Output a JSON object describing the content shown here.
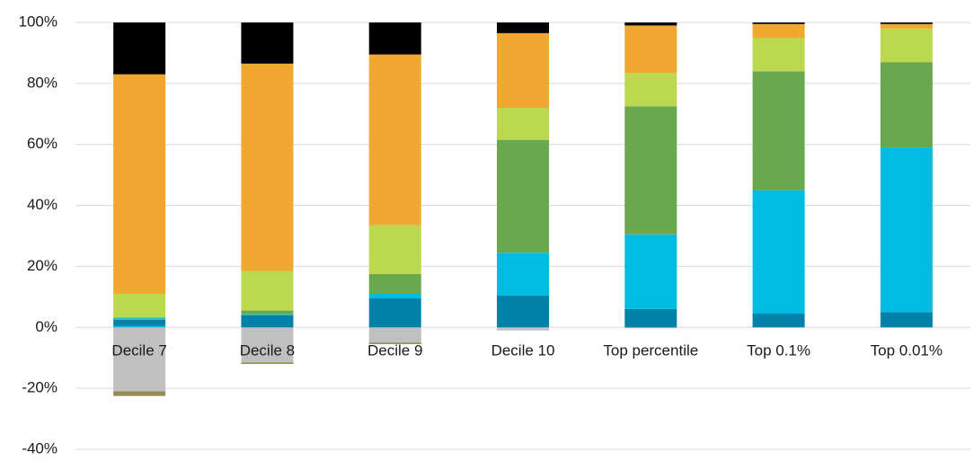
{
  "chart_data": {
    "type": "bar",
    "stacked": true,
    "title": "",
    "xlabel": "",
    "ylabel": "",
    "ylim": [
      -40,
      100
    ],
    "yticks": [
      100,
      80,
      60,
      40,
      20,
      0,
      -20,
      -40
    ],
    "ytick_labels": [
      "100%",
      "80%",
      "60%",
      "40%",
      "20%",
      "0%",
      "-20%",
      "-40%"
    ],
    "grid": true,
    "legend": "none",
    "categories": [
      "Decile 7",
      "Decile 8",
      "Decile 9",
      "Decile 10",
      "Top percentile",
      "Top 0.1%",
      "Top 0.01%"
    ],
    "series": [
      {
        "color": "#c0c0c0",
        "values": [
          -21.0,
          -11.5,
          -5.0,
          -1.0,
          -0.3,
          0,
          0
        ]
      },
      {
        "color": "#948a54",
        "values": [
          -1.5,
          -0.5,
          -0.5,
          0,
          0,
          0,
          0
        ]
      },
      {
        "color": "#00b0f0",
        "values": [
          0.5,
          0,
          0,
          0,
          0,
          0,
          0
        ]
      },
      {
        "color": "#0081a8",
        "values": [
          2.0,
          4.0,
          9.5,
          10.5,
          6.0,
          4.5,
          5.0
        ]
      },
      {
        "color": "#00bce0",
        "values": [
          0.5,
          0.3,
          1.5,
          14.0,
          24.5,
          40.5,
          54.0
        ]
      },
      {
        "color": "#6aa84f",
        "values": [
          0.2,
          1.2,
          6.5,
          37.0,
          42.0,
          39.0,
          28.0
        ]
      },
      {
        "color": "#bcd750",
        "values": [
          7.8,
          13.0,
          16.0,
          10.5,
          11.0,
          11.0,
          11.0
        ]
      },
      {
        "color": "#f0a830",
        "values": [
          72.0,
          68.0,
          56.0,
          24.5,
          15.5,
          4.5,
          1.5
        ]
      },
      {
        "color": "#000000",
        "values": [
          17.0,
          13.5,
          10.5,
          3.5,
          1.0,
          0.5,
          0.5
        ]
      }
    ]
  }
}
